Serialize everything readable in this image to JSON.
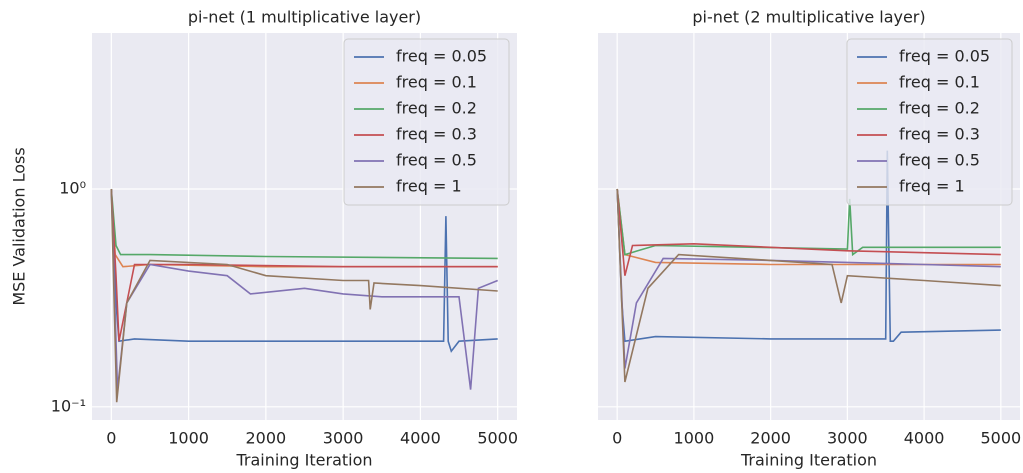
{
  "chart_data": [
    {
      "type": "line",
      "title": "pi-net (1 multiplicative layer)",
      "xlabel": "Training Iteration",
      "ylabel": "MSE Validation Loss",
      "xlim": [
        -250,
        5250
      ],
      "xticks": [
        0,
        1000,
        2000,
        3000,
        4000,
        5000
      ],
      "ylim": [
        0.087,
        5.2
      ],
      "yticks": [
        {
          "value": 0.1,
          "label": "10⁻¹"
        },
        {
          "value": 1,
          "label": "10⁰"
        }
      ],
      "log_y": true,
      "grid": true,
      "legend": "upper right",
      "series": [
        {
          "name": "freq = 0.05",
          "color": "#4c72b0",
          "x": [
            0,
            60,
            100,
            300,
            1000,
            2000,
            3000,
            4000,
            4300,
            4330,
            4360,
            4400,
            4500,
            5000
          ],
          "values": [
            1.0,
            0.3,
            0.2,
            0.205,
            0.2,
            0.2,
            0.2,
            0.2,
            0.2,
            0.75,
            0.2,
            0.18,
            0.2,
            0.205
          ]
        },
        {
          "name": "freq = 0.1",
          "color": "#dd8452",
          "x": [
            0,
            50,
            150,
            500,
            2000,
            5000
          ],
          "values": [
            1.0,
            0.5,
            0.44,
            0.45,
            0.44,
            0.44
          ]
        },
        {
          "name": "freq = 0.2",
          "color": "#55a868",
          "x": [
            0,
            60,
            120,
            500,
            2000,
            5000
          ],
          "values": [
            1.0,
            0.55,
            0.5,
            0.5,
            0.49,
            0.48
          ]
        },
        {
          "name": "freq = 0.3",
          "color": "#c44e52",
          "x": [
            0,
            60,
            100,
            300,
            1000,
            3000,
            5000
          ],
          "values": [
            1.0,
            0.4,
            0.2,
            0.45,
            0.45,
            0.44,
            0.44
          ]
        },
        {
          "name": "freq = 0.5",
          "color": "#8172b3",
          "x": [
            0,
            80,
            200,
            500,
            1000,
            1500,
            1800,
            2500,
            3000,
            3500,
            4500,
            4650,
            4750,
            5000
          ],
          "values": [
            1.0,
            0.12,
            0.3,
            0.45,
            0.42,
            0.4,
            0.33,
            0.35,
            0.33,
            0.32,
            0.32,
            0.12,
            0.35,
            0.38
          ]
        },
        {
          "name": "freq = 1",
          "color": "#937860",
          "x": [
            0,
            70,
            200,
            500,
            1500,
            2000,
            3000,
            3330,
            3350,
            3400,
            4000,
            5000
          ],
          "values": [
            1.0,
            0.105,
            0.3,
            0.47,
            0.45,
            0.4,
            0.38,
            0.38,
            0.28,
            0.37,
            0.36,
            0.34
          ]
        }
      ]
    },
    {
      "type": "line",
      "title": "pi-net (2 multiplicative layer)",
      "xlabel": "Training Iteration",
      "xlim": [
        -250,
        5250
      ],
      "xticks": [
        0,
        1000,
        2000,
        3000,
        4000,
        5000
      ],
      "sharey": true,
      "log_y": true,
      "grid": true,
      "legend": "upper right",
      "series": [
        {
          "name": "freq = 0.05",
          "color": "#4c72b0",
          "x": [
            0,
            60,
            100,
            500,
            2000,
            3400,
            3500,
            3520,
            3560,
            3600,
            3700,
            5000
          ],
          "values": [
            1.0,
            0.3,
            0.2,
            0.21,
            0.205,
            0.205,
            0.205,
            1.5,
            0.2,
            0.2,
            0.22,
            0.225
          ]
        },
        {
          "name": "freq = 0.1",
          "color": "#dd8452",
          "x": [
            0,
            100,
            500,
            2000,
            5000
          ],
          "values": [
            1.0,
            0.5,
            0.46,
            0.45,
            0.45
          ]
        },
        {
          "name": "freq = 0.2",
          "color": "#55a868",
          "x": [
            0,
            100,
            500,
            3000,
            3030,
            3070,
            3200,
            5000
          ],
          "values": [
            1.0,
            0.5,
            0.55,
            0.53,
            0.9,
            0.5,
            0.54,
            0.54
          ]
        },
        {
          "name": "freq = 0.3",
          "color": "#c44e52",
          "x": [
            0,
            100,
            200,
            1000,
            3000,
            5000
          ],
          "values": [
            1.0,
            0.4,
            0.55,
            0.56,
            0.52,
            0.5
          ]
        },
        {
          "name": "freq = 0.5",
          "color": "#8172b3",
          "x": [
            0,
            100,
            250,
            600,
            2000,
            4000,
            5000
          ],
          "values": [
            1.0,
            0.15,
            0.3,
            0.48,
            0.47,
            0.45,
            0.44
          ]
        },
        {
          "name": "freq = 1",
          "color": "#937860",
          "x": [
            0,
            100,
            400,
            800,
            2000,
            2800,
            2920,
            3000,
            4000,
            5000
          ],
          "values": [
            1.0,
            0.13,
            0.35,
            0.5,
            0.47,
            0.45,
            0.3,
            0.4,
            0.38,
            0.36
          ]
        }
      ]
    }
  ]
}
